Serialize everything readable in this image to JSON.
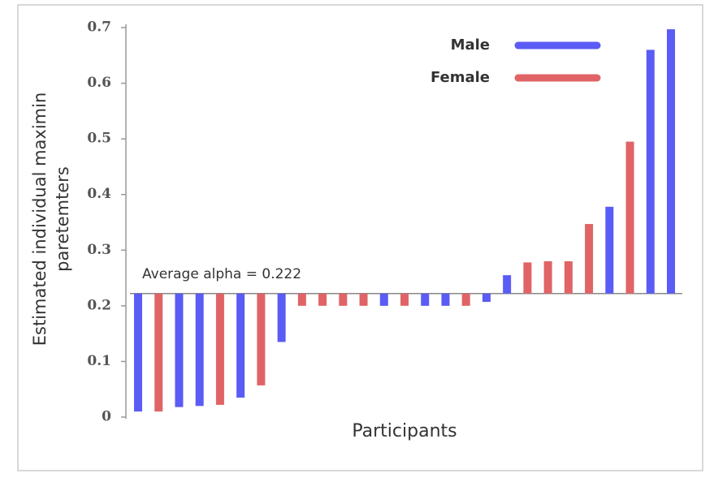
{
  "chart_data": {
    "type": "bar",
    "categories": [
      null,
      null,
      null,
      null,
      null,
      null,
      null,
      null,
      null,
      null,
      null,
      null,
      null,
      null,
      null,
      null,
      null,
      null,
      null,
      null,
      null,
      null,
      null,
      null,
      null,
      null,
      null
    ],
    "series": [
      {
        "name": "Male",
        "color": "#5b5bf5",
        "values": [
          0.01,
          null,
          0.018,
          0.02,
          null,
          0.035,
          null,
          0.135,
          null,
          null,
          null,
          null,
          0.2,
          null,
          0.2,
          0.2,
          null,
          0.207,
          0.255,
          null,
          null,
          null,
          null,
          0.378,
          null,
          0.66,
          0.697
        ]
      },
      {
        "name": "Female",
        "color": "#e06466",
        "values": [
          null,
          0.01,
          null,
          null,
          0.022,
          null,
          0.057,
          null,
          0.2,
          0.2,
          0.2,
          0.2,
          null,
          0.2,
          null,
          null,
          0.2,
          null,
          null,
          0.278,
          0.28,
          0.28,
          0.347,
          null,
          0.495,
          null,
          null
        ]
      }
    ],
    "baseline": 0.222,
    "annotation": "Average alpha = 0.222",
    "ylabel": [
      "Estimated individual maximin",
      "paretemters"
    ],
    "xlabel": "Participants",
    "ylim": [
      0,
      0.7
    ],
    "yticks": [
      0,
      0.1,
      0.2,
      0.3,
      0.4,
      0.5,
      0.6,
      0.7
    ],
    "legend": "upper right"
  }
}
